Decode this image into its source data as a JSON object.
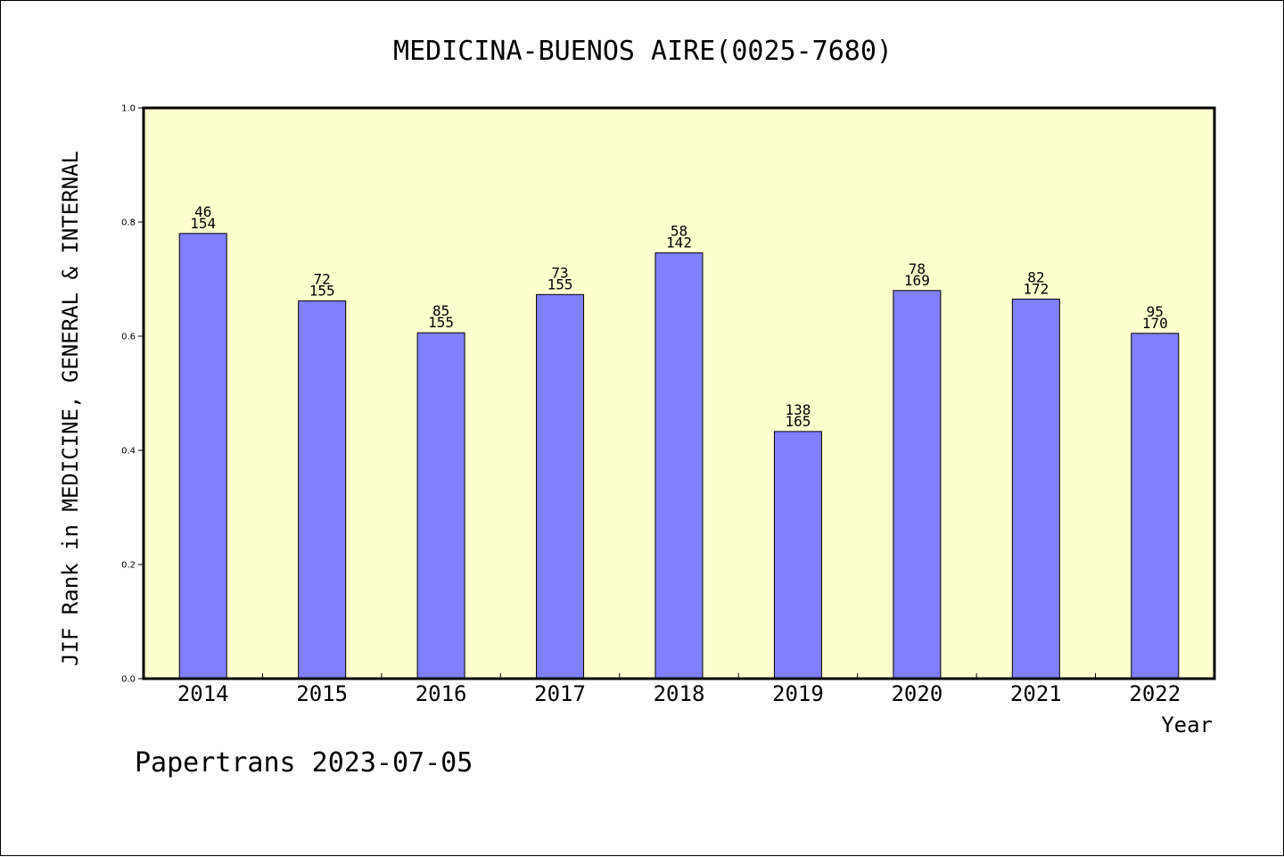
{
  "chart_data": {
    "type": "bar",
    "title": "MEDICINA-BUENOS AIRE(0025-7680)",
    "xlabel": "Year",
    "ylabel": "JIF Rank in MEDICINE, GENERAL & INTERNAL",
    "ylim": [
      0,
      1.0
    ],
    "yticks": [
      "0.0",
      "0.2",
      "0.4",
      "0.6",
      "0.8",
      "1.0"
    ],
    "categories": [
      "2014",
      "2015",
      "2016",
      "2017",
      "2018",
      "2019",
      "2020",
      "2021",
      "2022"
    ],
    "values": [
      0.78,
      0.662,
      0.606,
      0.673,
      0.746,
      0.433,
      0.68,
      0.665,
      0.605
    ],
    "rank_labels": [
      "46",
      "72",
      "85",
      "73",
      "58",
      "138",
      "78",
      "82",
      "95"
    ],
    "total_labels": [
      "154",
      "155",
      "155",
      "155",
      "142",
      "165",
      "169",
      "172",
      "170"
    ],
    "grid": false,
    "legend": "none",
    "colors": {
      "bar": "#8080ff",
      "plot_background": "#ffffd0",
      "axis": "#000000"
    }
  },
  "footer": "Papertrans 2023-07-05"
}
